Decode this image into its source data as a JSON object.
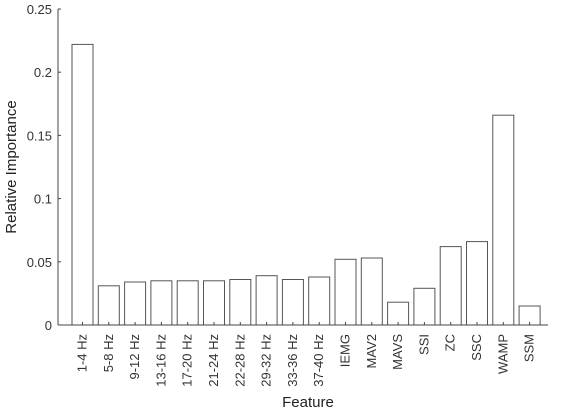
{
  "chart_data": {
    "type": "bar",
    "categories": [
      "1-4 Hz",
      "5-8 Hz",
      "9-12 Hz",
      "13-16 Hz",
      "17-20 Hz",
      "21-24 Hz",
      "22-28 Hz",
      "29-32 Hz",
      "33-36 Hz",
      "37-40 Hz",
      "IEMG",
      "MAV2",
      "MAVS",
      "SSI",
      "ZC",
      "SSC",
      "WAMP",
      "SSM"
    ],
    "values": [
      0.222,
      0.031,
      0.034,
      0.035,
      0.035,
      0.035,
      0.036,
      0.039,
      0.036,
      0.038,
      0.052,
      0.053,
      0.018,
      0.029,
      0.062,
      0.066,
      0.166,
      0.015
    ],
    "title": "",
    "xlabel": "Feature",
    "ylabel": "Relative Importance",
    "ylim": [
      0,
      0.25
    ],
    "yticks": [
      "0",
      "0.05",
      "0.1",
      "0.15",
      "0.2",
      "0.25"
    ],
    "grid": false,
    "bar_fill": "#ffffff",
    "bar_edge": "#555555"
  }
}
